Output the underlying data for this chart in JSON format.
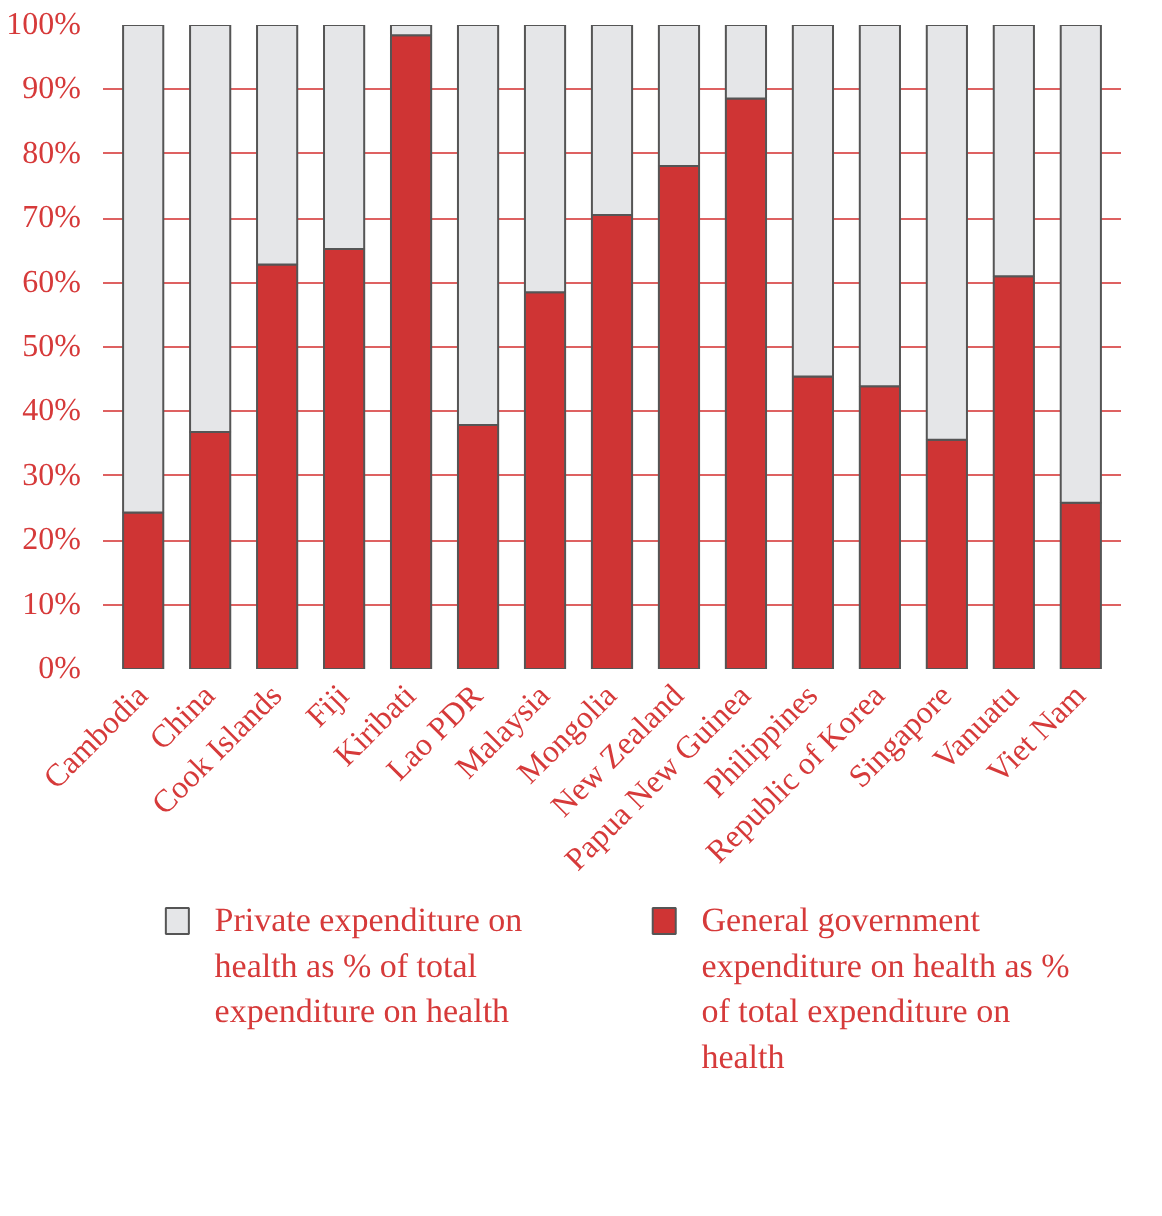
{
  "chart_data": {
    "type": "bar",
    "stacked": true,
    "categories": [
      "Cambodia",
      "China",
      "Cook Islands",
      "Fiji",
      "Kiribati",
      "Lao PDR",
      "Malaysia",
      "Mongolia",
      "New Zealand",
      "Papua New Guinea",
      "Philippines",
      "Republic of Korea",
      "Singapore",
      "Vanuatu",
      "Viet Nam"
    ],
    "series": [
      {
        "name": "General government expenditure on health as % of total expenditure on health",
        "color": "#cf3434",
        "values": [
          24.3,
          36.8,
          62.8,
          65.2,
          98.4,
          37.9,
          58.5,
          70.5,
          78.1,
          88.6,
          45.4,
          43.9,
          35.6,
          61.0,
          25.8
        ]
      },
      {
        "name": "Private expenditure on health as % of total expenditure on health",
        "color": "#e5e6e8",
        "values": [
          75.7,
          63.2,
          37.2,
          34.8,
          1.6,
          62.1,
          41.5,
          29.5,
          21.9,
          11.4,
          54.6,
          56.1,
          64.4,
          39.0,
          74.2
        ]
      }
    ],
    "ylim": [
      0,
      100
    ],
    "yticks": [
      {
        "value": 0,
        "label": "0%"
      },
      {
        "value": 10,
        "label": "10%"
      },
      {
        "value": 20,
        "label": "20%"
      },
      {
        "value": 30,
        "label": "30%"
      },
      {
        "value": 40,
        "label": "40%"
      },
      {
        "value": 50,
        "label": "50%"
      },
      {
        "value": 60,
        "label": "60%"
      },
      {
        "value": 70,
        "label": "70%"
      },
      {
        "value": 80,
        "label": "80%"
      },
      {
        "value": 90,
        "label": "90%"
      },
      {
        "value": 100,
        "label": "100%"
      }
    ],
    "grid": "y",
    "legend": "bottom"
  }
}
